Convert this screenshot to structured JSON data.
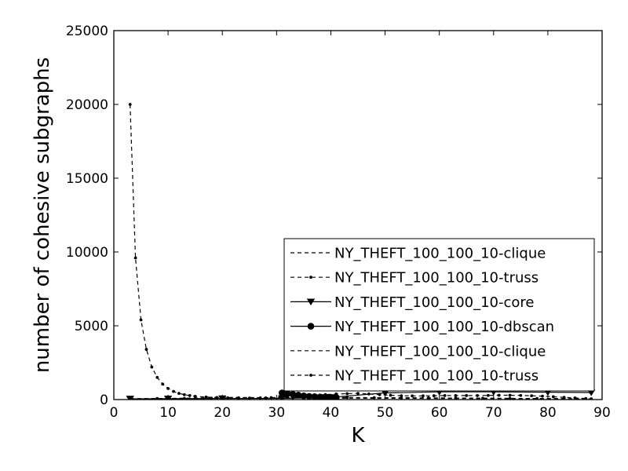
{
  "chart_data": {
    "type": "line",
    "title": "",
    "xlabel": "K",
    "ylabel": "number of cohesive subgraphs",
    "xlim": [
      0,
      90
    ],
    "ylim": [
      0,
      25000
    ],
    "xticks": [
      0,
      10,
      20,
      30,
      40,
      50,
      60,
      70,
      80,
      90
    ],
    "yticks": [
      0,
      5000,
      10000,
      15000,
      20000,
      25000
    ],
    "grid": false,
    "legend_position": "lower-right",
    "colors": {
      "line": "#000000",
      "background": "#ffffff"
    },
    "series": [
      {
        "name": "NY_THEFT_100_100_10-clique",
        "style": "dashed",
        "marker": "none",
        "x": [
          3,
          5,
          8,
          10,
          13,
          16,
          19,
          22,
          25,
          28,
          30,
          33,
          36,
          40,
          45,
          50,
          55,
          60,
          65,
          70,
          75,
          80,
          85,
          88
        ],
        "y": [
          50,
          60,
          70,
          80,
          90,
          110,
          130,
          150,
          140,
          130,
          120,
          110,
          100,
          95,
          90,
          85,
          80,
          75,
          70,
          65,
          60,
          55,
          50,
          45
        ]
      },
      {
        "name": "NY_THEFT_100_100_10-truss",
        "style": "dashed",
        "marker": "dot",
        "x": [
          3,
          4,
          5,
          6,
          7,
          8,
          9,
          10,
          11,
          12,
          13,
          14,
          15,
          17,
          19,
          21,
          23,
          25,
          27,
          29,
          31,
          33,
          35,
          37,
          39,
          41,
          43,
          45,
          47,
          49,
          51,
          53,
          55,
          57,
          59,
          61,
          63,
          65,
          67,
          69,
          71,
          73,
          75,
          77,
          79,
          81,
          83,
          85,
          87,
          88
        ],
        "y": [
          20000,
          9600,
          5400,
          3400,
          2200,
          1500,
          1050,
          750,
          550,
          420,
          330,
          270,
          220,
          170,
          140,
          120,
          110,
          100,
          110,
          130,
          160,
          200,
          250,
          300,
          340,
          380,
          400,
          420,
          380,
          330,
          290,
          260,
          250,
          250,
          260,
          270,
          270,
          270,
          270,
          280,
          290,
          290,
          280,
          260,
          230,
          190,
          150,
          110,
          70,
          40
        ]
      },
      {
        "name": "NY_THEFT_100_100_10-core",
        "style": "solid",
        "marker": "triangle-down",
        "x": [
          3,
          10,
          20,
          31,
          40,
          50,
          60,
          70,
          80,
          88
        ],
        "y": [
          50,
          60,
          70,
          80,
          150,
          450,
          520,
          520,
          500,
          480
        ]
      },
      {
        "name": "NY_THEFT_100_100_10-dbscan",
        "style": "solid",
        "marker": "circle",
        "x": [
          31,
          32,
          33,
          34,
          35,
          36,
          37,
          38,
          39,
          40,
          41
        ],
        "y": [
          450,
          400,
          350,
          300,
          250,
          220,
          200,
          180,
          160,
          150,
          140
        ]
      },
      {
        "name": "NY_THEFT_100_100_10-clique",
        "style": "dashed",
        "marker": "none",
        "x": [
          3,
          8,
          13,
          18,
          23,
          28,
          33,
          38,
          43,
          48,
          53,
          58,
          63,
          68,
          73,
          78,
          83,
          88
        ],
        "y": [
          40,
          50,
          60,
          80,
          100,
          120,
          140,
          150,
          140,
          130,
          120,
          110,
          100,
          90,
          80,
          70,
          60,
          50
        ]
      },
      {
        "name": "NY_THEFT_100_100_10-truss",
        "style": "dashed",
        "marker": "dot",
        "x": [
          3,
          8,
          13,
          18,
          23,
          28,
          33,
          38,
          43,
          48,
          53,
          58,
          63,
          68,
          73,
          78,
          83,
          88
        ],
        "y": [
          60,
          70,
          80,
          90,
          100,
          110,
          120,
          130,
          140,
          130,
          120,
          110,
          100,
          90,
          80,
          70,
          60,
          50
        ]
      }
    ]
  }
}
